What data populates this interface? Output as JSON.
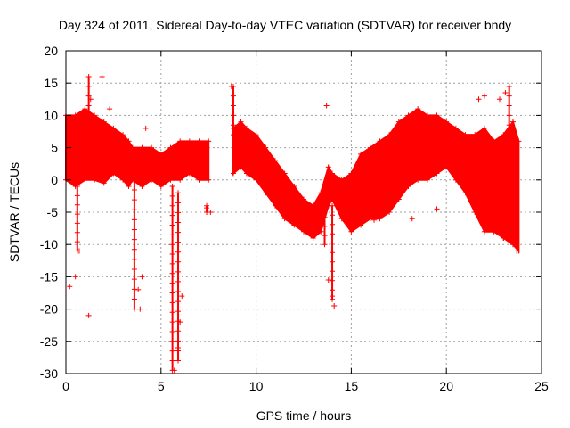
{
  "chart_data": {
    "type": "scatter",
    "title": "Day 324 of 2011, Sidereal Day-to-day VTEC variation (SDTVAR) for receiver bndy",
    "xlabel": "GPS time / hours",
    "ylabel": "SDTVAR / TECUs",
    "xlim": [
      0,
      25
    ],
    "ylim": [
      -30,
      20
    ],
    "xticks": [
      0,
      5,
      10,
      15,
      20,
      25
    ],
    "yticks": [
      -30,
      -25,
      -20,
      -15,
      -10,
      -5,
      0,
      5,
      10,
      15,
      20
    ],
    "grid": true,
    "marker": "+",
    "color": "#ff0000",
    "series": [
      {
        "name": "SDTVAR",
        "band": [
          [
            0.0,
            0,
            10
          ],
          [
            0.5,
            -1,
            10
          ],
          [
            1.0,
            0,
            11
          ],
          [
            1.5,
            0,
            10
          ],
          [
            2.0,
            -0.5,
            9
          ],
          [
            2.5,
            1,
            8
          ],
          [
            3.0,
            0,
            7
          ],
          [
            3.3,
            -1,
            6
          ],
          [
            3.5,
            0,
            5
          ],
          [
            4.0,
            -1,
            5
          ],
          [
            4.5,
            0,
            5
          ],
          [
            5.0,
            -1,
            4
          ],
          [
            5.5,
            0,
            5
          ],
          [
            6.0,
            0,
            6
          ],
          [
            6.5,
            1,
            6
          ],
          [
            7.0,
            0,
            6
          ],
          [
            7.5,
            0,
            6
          ],
          [
            8.8,
            1,
            8
          ],
          [
            9.2,
            2,
            9
          ],
          [
            9.5,
            1,
            8
          ],
          [
            10.0,
            0,
            7
          ],
          [
            10.5,
            -2,
            5
          ],
          [
            11.0,
            -4,
            3
          ],
          [
            11.5,
            -6,
            1
          ],
          [
            12.0,
            -7,
            -1
          ],
          [
            12.5,
            -8,
            -3
          ],
          [
            13.0,
            -9,
            -4
          ],
          [
            13.4,
            -8,
            -2
          ],
          [
            13.8,
            -4,
            2
          ],
          [
            14.0,
            -3,
            1
          ],
          [
            14.5,
            -6,
            0
          ],
          [
            15.0,
            -8,
            1
          ],
          [
            15.5,
            -7,
            4
          ],
          [
            16.0,
            -6,
            5
          ],
          [
            16.5,
            -6,
            6
          ],
          [
            17.0,
            -5,
            7
          ],
          [
            17.5,
            -3,
            9
          ],
          [
            18.0,
            -1,
            10
          ],
          [
            18.5,
            0,
            11
          ],
          [
            19.0,
            0,
            10
          ],
          [
            19.5,
            1,
            10
          ],
          [
            20.0,
            2,
            9
          ],
          [
            20.5,
            0,
            8
          ],
          [
            21.0,
            -2,
            7
          ],
          [
            21.5,
            -5,
            7
          ],
          [
            22.0,
            -8,
            8
          ],
          [
            22.5,
            -8,
            6
          ],
          [
            23.0,
            -9,
            7
          ],
          [
            23.5,
            -10,
            9
          ],
          [
            23.8,
            -11,
            6
          ]
        ],
        "outliers": [
          [
            0.2,
            -16.5
          ],
          [
            0.5,
            -15
          ],
          [
            0.7,
            -11
          ],
          [
            1.2,
            -21
          ],
          [
            1.3,
            12.5
          ],
          [
            1.9,
            16
          ],
          [
            2.3,
            11
          ],
          [
            4.2,
            8
          ],
          [
            3.9,
            -20
          ],
          [
            3.8,
            -17
          ],
          [
            4.0,
            -15
          ],
          [
            5.7,
            -29.5
          ],
          [
            5.9,
            -26
          ],
          [
            6.0,
            -22
          ],
          [
            6.1,
            -18
          ],
          [
            14.0,
            -18
          ],
          [
            14.1,
            -19.5
          ],
          [
            13.8,
            -15.5
          ],
          [
            8.7,
            14.5
          ],
          [
            13.7,
            11.5
          ],
          [
            21.7,
            12.5
          ],
          [
            22.0,
            13
          ],
          [
            23.3,
            14.5
          ],
          [
            23.1,
            13.5
          ],
          [
            22.8,
            12.5
          ],
          [
            18.2,
            -6
          ],
          [
            19.5,
            -4.5
          ],
          [
            16.2,
            -6.2
          ],
          [
            15.0,
            -7
          ],
          [
            7.6,
            -5
          ],
          [
            23.0,
            -9
          ],
          [
            23.7,
            -11
          ]
        ],
        "spikes": [
          [
            3.6,
            0,
            -20
          ],
          [
            5.6,
            -1,
            -29.5
          ],
          [
            5.9,
            -2,
            -28
          ],
          [
            14.0,
            -4,
            -18.5
          ],
          [
            13.6,
            -3,
            -10
          ],
          [
            1.2,
            1,
            16
          ],
          [
            8.8,
            7,
            14.5
          ],
          [
            23.3,
            -5,
            14.5
          ],
          [
            0.6,
            -1,
            -11
          ],
          [
            7.4,
            -4,
            -5
          ]
        ]
      }
    ]
  }
}
